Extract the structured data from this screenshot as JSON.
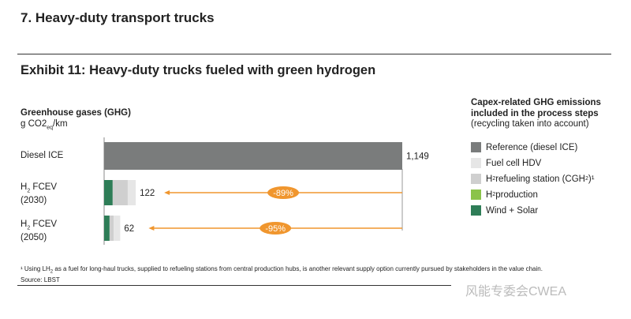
{
  "section_title": "7. Heavy-duty transport trucks",
  "exhibit_title": "Exhibit 11: Heavy-duty trucks fueled with green hydrogen",
  "watermark": "风能专委会CWEA",
  "legend": {
    "title_line1": "Capex-related GHG emissions",
    "title_line2": "included in the process steps",
    "subtitle": "(recycling taken into account)",
    "items": [
      {
        "label": "Reference (diesel ICE)",
        "color": "#7a7c7c"
      },
      {
        "label": "Fuel cell HDV",
        "color": "#e6e6e6"
      },
      {
        "label_pre": "H",
        "label_sub": "2",
        "label_mid": " refueling station (CGH",
        "label_sub2": "2",
        "label_post": ")¹",
        "color": "#cfcfcf"
      },
      {
        "label_pre": "H",
        "label_sub": "2",
        "label_post": " production",
        "color": "#8bc34a"
      },
      {
        "label": "Wind + Solar",
        "color": "#2e7d57"
      }
    ]
  },
  "footnote": {
    "line1_pre": "¹ Using LH",
    "line1_sub": "2",
    "line1_post": " as a fuel for long-haul trucks, supplied to refueling stations from central production hubs, is another relevant supply option currently pursued by stakeholders in the value chain.",
    "source": "Source: LBST"
  },
  "chart_data": {
    "type": "bar",
    "orientation": "horizontal",
    "stacked": true,
    "title": "Greenhouse gases (GHG)",
    "unit_pre": "g CO2",
    "unit_sub": "eq",
    "unit_post": "/km",
    "xlim": [
      0,
      1149
    ],
    "categories": [
      {
        "line1_pre": "Diesel ICE",
        "line1_sub": "",
        "line1_post": "",
        "line2": ""
      },
      {
        "line1_pre": "H",
        "line1_sub": "2",
        "line1_post": " FCEV",
        "line2": "(2030)"
      },
      {
        "line1_pre": "H",
        "line1_sub": "2",
        "line1_post": " FCEV",
        "line2": "(2050)"
      }
    ],
    "totals": [
      "1,149",
      "122",
      "62"
    ],
    "series": [
      {
        "name": "Reference (diesel ICE)",
        "color": "#7a7c7c",
        "values": [
          1149,
          0,
          0
        ]
      },
      {
        "name": "Wind + Solar",
        "color": "#2e7d57",
        "values": [
          0,
          33,
          21
        ]
      },
      {
        "name": "H2 production",
        "color": "#8bc34a",
        "values": [
          0,
          0,
          0
        ]
      },
      {
        "name": "H2 refueling station (CGH2)",
        "color": "#cfcfcf",
        "values": [
          0,
          58,
          16
        ]
      },
      {
        "name": "Fuel cell HDV",
        "color": "#e6e6e6",
        "values": [
          0,
          31,
          25
        ]
      }
    ],
    "reductions": [
      "-89%",
      "-95%"
    ],
    "accent_color": "#f0962e"
  }
}
